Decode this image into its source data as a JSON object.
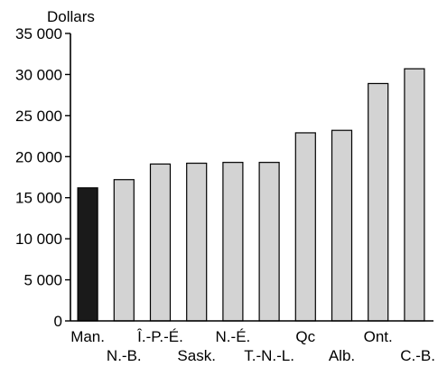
{
  "chart_data": {
    "type": "bar",
    "ylabel": "Dollars",
    "ylim": [
      0,
      35000
    ],
    "yticks": [
      0,
      5000,
      10000,
      15000,
      20000,
      25000,
      30000,
      35000
    ],
    "ytick_labels": [
      "0",
      "5 000",
      "10 000",
      "15 000",
      "20 000",
      "25 000",
      "30 000",
      "35 000"
    ],
    "categories": [
      "Man.",
      "N.-B.",
      "Î.-P.-É.",
      "Sask.",
      "N.-É.",
      "T.-N.-L.",
      "Qc",
      "Alb.",
      "Ont.",
      "C.-B."
    ],
    "label_rows": [
      0,
      1,
      0,
      1,
      0,
      1,
      0,
      1,
      0,
      1
    ],
    "values": [
      16200,
      17200,
      19100,
      19200,
      19300,
      19300,
      22900,
      23200,
      28900,
      30700
    ],
    "highlight_index": 0,
    "colors": {
      "highlight": "#1a1a1a",
      "bar": "#d3d3d3",
      "stroke": "#000000"
    },
    "grid": false,
    "legend": "none"
  }
}
